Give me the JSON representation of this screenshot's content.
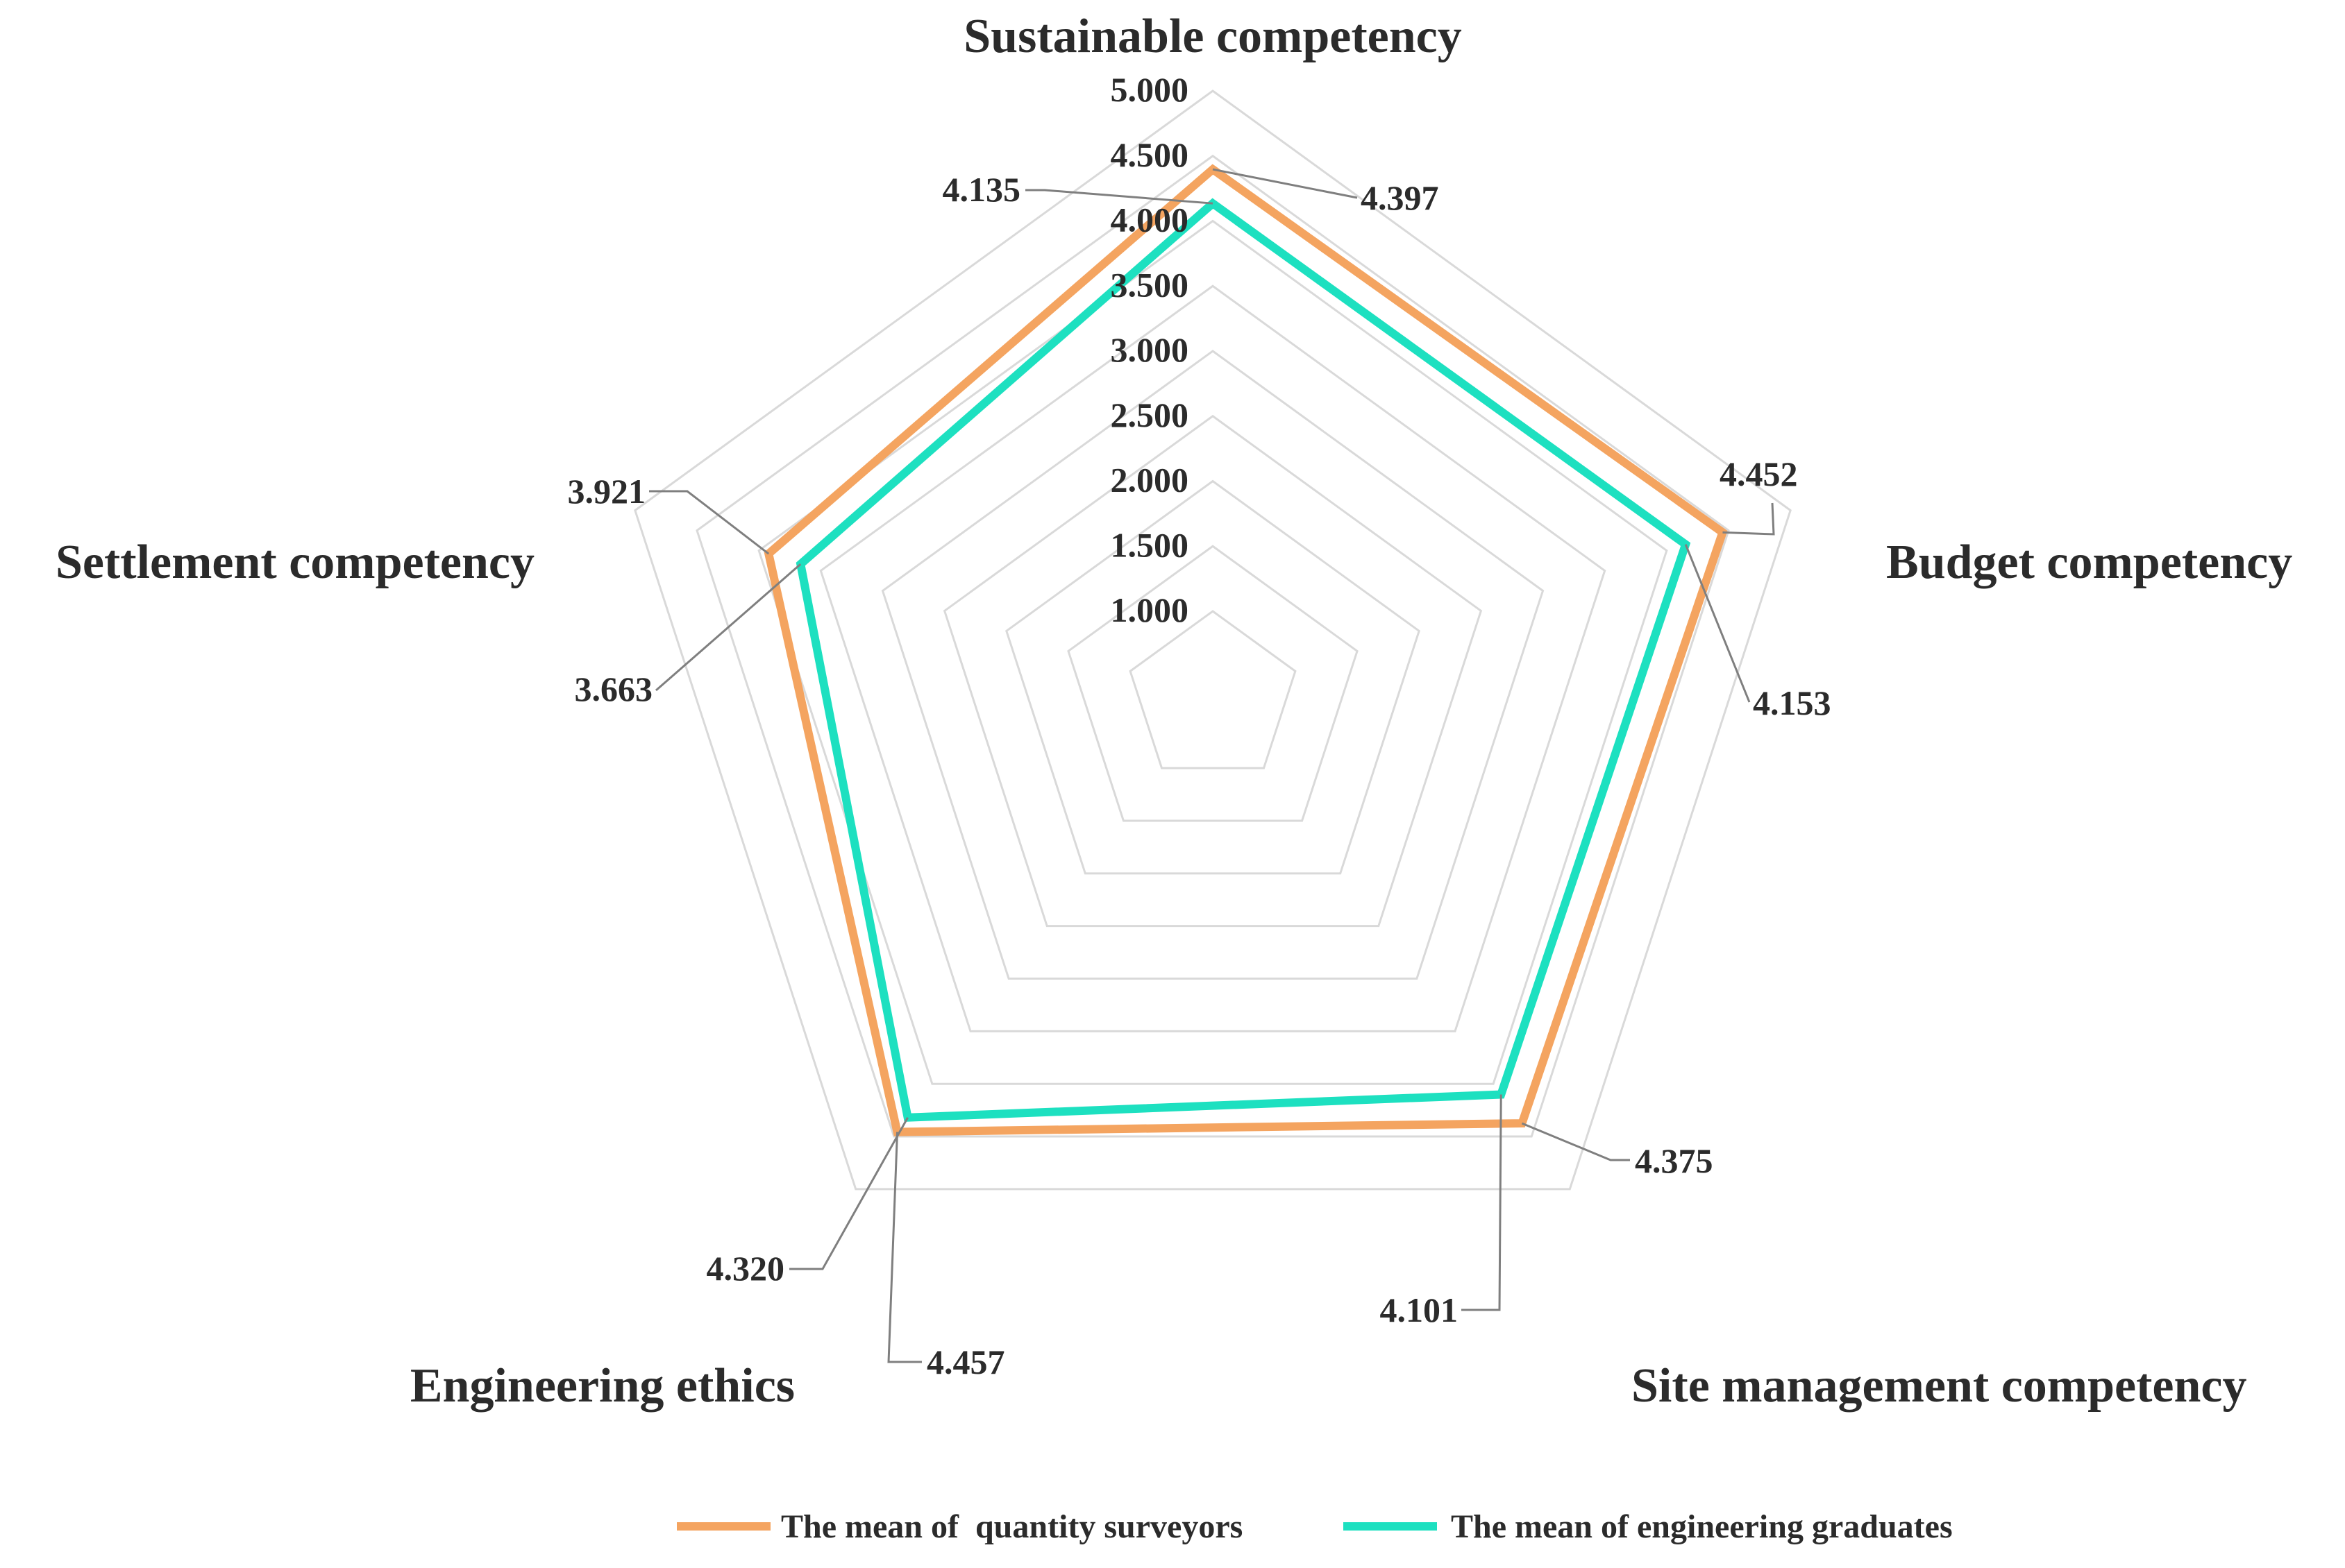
{
  "chart_data": {
    "type": "radar",
    "axes": [
      "Sustainable competency",
      "Budget competency",
      "Site management competency",
      "Engineering ethics",
      "Settlement competency"
    ],
    "ticks": [
      "1.000",
      "1.500",
      "2.000",
      "2.500",
      "3.000",
      "3.500",
      "4.000",
      "4.500",
      "5.000"
    ],
    "rlim": [
      1,
      5
    ],
    "series": [
      {
        "name": "The mean of  quantity surveyors",
        "color": "#f4a460",
        "values": [
          4.397,
          4.452,
          4.375,
          4.457,
          3.921
        ],
        "labels": [
          "4.397",
          "4.452",
          "4.375",
          "4.457",
          "3.921"
        ]
      },
      {
        "name": "The mean of engineering graduates",
        "color": "#1de0c0",
        "values": [
          4.135,
          4.153,
          4.101,
          4.32,
          3.663
        ],
        "labels": [
          "4.135",
          "4.153",
          "4.101",
          "4.320",
          "3.663"
        ]
      }
    ],
    "legend_position": "bottom"
  }
}
